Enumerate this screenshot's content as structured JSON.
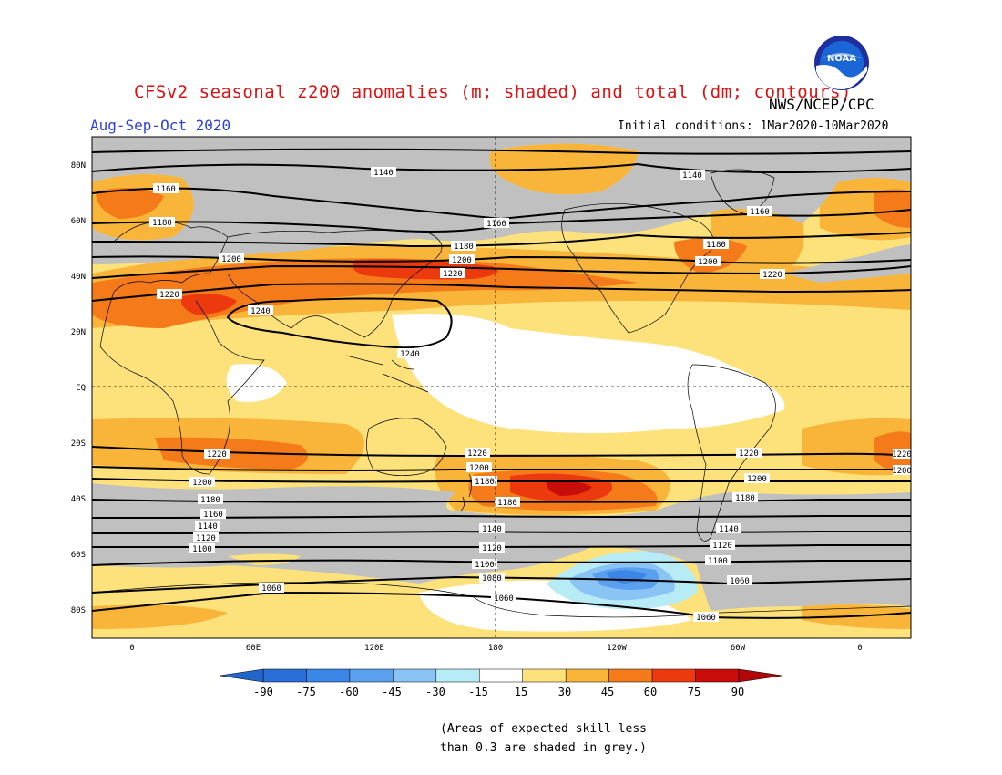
{
  "header": {
    "title": "CFSv2 seasonal z200 anomalies (m; shaded) and total (dm; contours)",
    "org": "NWS/NCEP/CPC",
    "period": "Aug-Sep-Oct 2020",
    "initial_conditions": "Initial conditions: 1Mar2020-10Mar2020",
    "logo_text": "NOAA"
  },
  "map": {
    "lat_ticks": [
      "80N",
      "60N",
      "40N",
      "20N",
      "EQ",
      "20S",
      "40S",
      "60S",
      "80S"
    ],
    "lon_ticks": [
      "0",
      "60E",
      "120E",
      "180",
      "120W",
      "60W",
      "0"
    ],
    "contours": [
      {
        "value": "1240",
        "labels": [
          "1240",
          "1240"
        ]
      },
      {
        "value": "1220",
        "labels": [
          "1220",
          "1220",
          "1220",
          "1220",
          "1220",
          "1220",
          "1220"
        ]
      },
      {
        "value": "1200",
        "labels": [
          "1200",
          "1200",
          "1200",
          "1200",
          "1200",
          "1200",
          "1200"
        ]
      },
      {
        "value": "1180",
        "labels": [
          "1180",
          "1180",
          "1180",
          "1180",
          "1180",
          "1180",
          "1180"
        ]
      },
      {
        "value": "1160",
        "labels": [
          "1160",
          "1160",
          "1160",
          "1160"
        ]
      },
      {
        "value": "1140",
        "labels": [
          "1140",
          "1140",
          "1140",
          "1140",
          "1140"
        ]
      },
      {
        "value": "1120",
        "labels": [
          "1120",
          "1120",
          "1120"
        ]
      },
      {
        "value": "1100",
        "labels": [
          "1100",
          "1100",
          "1100"
        ]
      },
      {
        "value": "1080",
        "labels": [
          "1080"
        ]
      },
      {
        "value": "1060",
        "labels": [
          "1060",
          "1060",
          "1060",
          "1060"
        ]
      }
    ]
  },
  "colorbar": {
    "ticks": [
      "-90",
      "-75",
      "-60",
      "-45",
      "-30",
      "-15",
      "15",
      "30",
      "45",
      "60",
      "75",
      "90"
    ],
    "colors": [
      "#2a6fd8",
      "#3a86e6",
      "#5aa0ee",
      "#8ac4f4",
      "#b7ecf6",
      "#ffffff",
      "#fde27c",
      "#f9b53a",
      "#f47a1a",
      "#ec3a0e",
      "#c90d0a"
    ],
    "end_low": "#2266cc",
    "end_high": "#b00808",
    "skill_grey": "#c0c0c0"
  },
  "notes": {
    "line1": "(Areas of expected skill less",
    "line2": "than 0.3 are shaded in grey.)"
  }
}
